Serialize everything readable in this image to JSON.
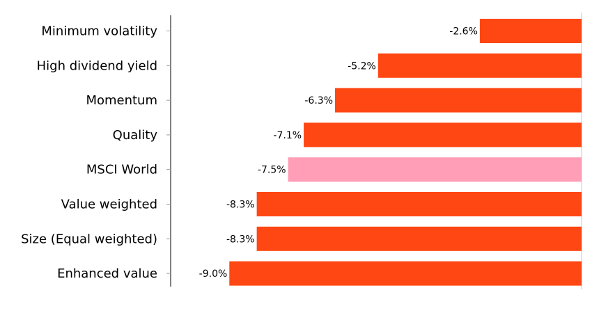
{
  "chart_data": {
    "type": "bar",
    "orientation": "horizontal",
    "categories": [
      "Minimum volatility",
      "High dividend yield",
      "Momentum",
      "Quality",
      "MSCI World",
      "Value weighted",
      "Size (Equal weighted)",
      "Enhanced value"
    ],
    "values": [
      -2.6,
      -5.2,
      -6.3,
      -7.1,
      -7.5,
      -8.3,
      -8.3,
      -9.0
    ],
    "value_labels": [
      "-2.6%",
      "-5.2%",
      "-6.3%",
      "-7.1%",
      "-7.5%",
      "-8.3%",
      "-8.3%",
      "-9.0%"
    ],
    "highlight": [
      "MSCI World"
    ],
    "xlim": [
      -10.5,
      0
    ],
    "title": "",
    "xlabel": "",
    "ylabel": "",
    "grid": false,
    "colors": {
      "bar": "#ff4713",
      "highlight": "#ff9eb6",
      "axis": "#000000",
      "zero_line": "#c8c8c8"
    }
  }
}
